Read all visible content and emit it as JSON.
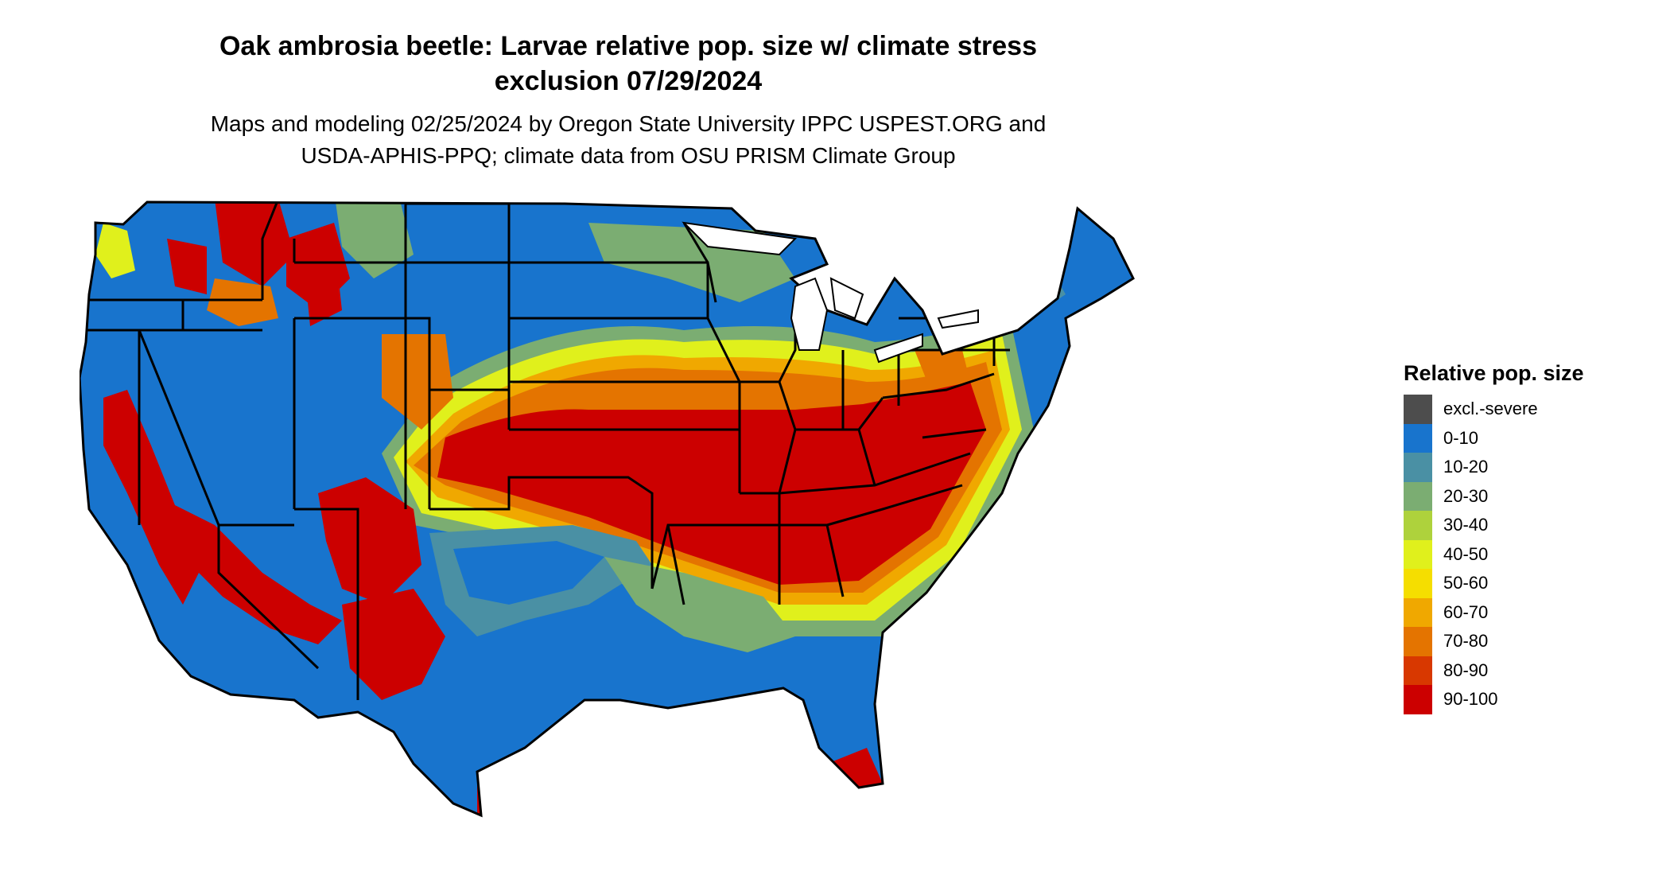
{
  "header": {
    "title_line1": "Oak ambrosia beetle: Larvae relative pop. size w/ climate stress",
    "title_line2": "exclusion 07/29/2024",
    "subtitle_line1": "Maps and modeling 02/25/2024 by Oregon State University IPPC USPEST.ORG and",
    "subtitle_line2": "USDA-APHIS-PPQ; climate data from OSU PRISM Climate Group"
  },
  "legend": {
    "title": "Relative pop. size",
    "items": [
      {
        "label": "excl.-severe",
        "color": "#4d4d4d"
      },
      {
        "label": "0-10",
        "color": "#1874cd"
      },
      {
        "label": "10-20",
        "color": "#4a90a4"
      },
      {
        "label": "20-30",
        "color": "#7bad72"
      },
      {
        "label": "30-40",
        "color": "#aed23c"
      },
      {
        "label": "40-50",
        "color": "#e0f01c"
      },
      {
        "label": "50-60",
        "color": "#f5de00"
      },
      {
        "label": "60-70",
        "color": "#f0a800"
      },
      {
        "label": "70-80",
        "color": "#e47400"
      },
      {
        "label": "80-90",
        "color": "#d83800"
      },
      {
        "label": "90-100",
        "color": "#cc0000"
      }
    ]
  },
  "map": {
    "region": "contiguous-united-states",
    "border_color": "#000000",
    "base_color": "#1874cd"
  }
}
